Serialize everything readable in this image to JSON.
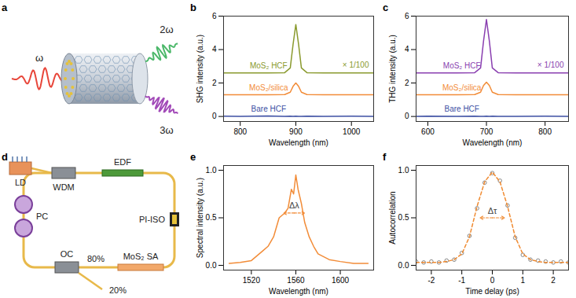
{
  "chart_data": [
    {
      "type": "line",
      "panel_label": "b",
      "x_label": "Wavelength (nm)",
      "y_label": "SHG intensity (a.u.)",
      "x": [
        770,
        800,
        850,
        880,
        890,
        895,
        900,
        905,
        910,
        920,
        950,
        1000,
        1040
      ],
      "series": [
        {
          "name": "MoS₂ HCF",
          "color": "#8a9a2e",
          "values": [
            2.6,
            2.6,
            2.6,
            2.62,
            2.9,
            4.3,
            5.5,
            4.3,
            2.9,
            2.62,
            2.6,
            2.6,
            2.6
          ]
        },
        {
          "name": "MoS₂/silica",
          "color": "#f28c38",
          "values": [
            1.3,
            1.3,
            1.3,
            1.31,
            1.45,
            1.8,
            2.0,
            1.8,
            1.45,
            1.31,
            1.3,
            1.3,
            1.3
          ]
        },
        {
          "name": "Bare HCF",
          "color": "#3d4fa3",
          "values": [
            0.02,
            0.0,
            0.03,
            0.01,
            0.02,
            0.0,
            0.02,
            0.01,
            0.0,
            0.02,
            0.01,
            0.02,
            0.0
          ]
        }
      ],
      "annotations": [
        {
          "text": "× 1/100",
          "color": "#8a9a2e"
        }
      ],
      "xlim": [
        770,
        1040
      ],
      "xticks": [
        800,
        900,
        1000
      ],
      "ylim": [
        -0.3,
        6
      ],
      "yticks": [
        0,
        2,
        4,
        6
      ]
    },
    {
      "type": "line",
      "panel_label": "c",
      "x_label": "Wavelength (nm)",
      "y_label": "THG intensity (a.u.)",
      "x": [
        580,
        600,
        650,
        680,
        690,
        695,
        700,
        705,
        710,
        720,
        750,
        800,
        840
      ],
      "series": [
        {
          "name": "MoS₂ HCF",
          "color": "#8a3fb0",
          "values": [
            2.6,
            2.6,
            2.6,
            2.62,
            2.9,
            4.5,
            5.8,
            4.5,
            2.9,
            2.62,
            2.6,
            2.6,
            2.6
          ]
        },
        {
          "name": "MoS₂/silica",
          "color": "#f28c38",
          "values": [
            1.3,
            1.3,
            1.3,
            1.31,
            1.45,
            1.85,
            2.05,
            1.85,
            1.45,
            1.31,
            1.3,
            1.3,
            1.3
          ]
        },
        {
          "name": "Bare HCF",
          "color": "#3d4fa3",
          "values": [
            0.01,
            0.02,
            0.0,
            0.02,
            0.01,
            0.0,
            0.02,
            0.01,
            0.02,
            0.0,
            0.01,
            0.02,
            0.0
          ]
        }
      ],
      "annotations": [
        {
          "text": "× 1/100",
          "color": "#8a3fb0"
        }
      ],
      "xlim": [
        580,
        840
      ],
      "xticks": [
        600,
        700,
        800
      ],
      "ylim": [
        -0.3,
        6
      ],
      "yticks": [
        0,
        2,
        4,
        6
      ]
    },
    {
      "type": "line",
      "panel_label": "e",
      "x_label": "Wavelength (nm)",
      "y_label": "Spectral intensity (a.u.)",
      "x": [
        1500,
        1510,
        1520,
        1525,
        1530,
        1535,
        1540,
        1545,
        1550,
        1553,
        1556,
        1558,
        1560,
        1562,
        1565,
        1568,
        1572,
        1576,
        1580,
        1590,
        1600,
        1612,
        1625
      ],
      "series": [
        {
          "color": "#f28c38",
          "values": [
            0.02,
            0.03,
            0.05,
            0.1,
            0.15,
            0.2,
            0.3,
            0.5,
            0.55,
            0.6,
            0.8,
            0.75,
            0.95,
            0.8,
            0.65,
            0.45,
            0.3,
            0.2,
            0.12,
            0.06,
            0.04,
            0.02,
            0.02
          ]
        }
      ],
      "annotations": [
        {
          "text": "Δλ",
          "color": "#f28c38",
          "x1": 1549,
          "x2": 1568,
          "y": 0.55
        }
      ],
      "xlim": [
        1495,
        1630
      ],
      "xticks": [
        1520,
        1560,
        1600
      ],
      "ylim": [
        -0.05,
        1.05
      ],
      "yticks": [
        {
          "value": 0,
          "label": "0.0"
        },
        {
          "value": 0.5,
          "label": "0.5"
        },
        {
          "value": 1,
          "label": "1.0"
        }
      ]
    },
    {
      "type": "line",
      "panel_label": "f",
      "x_label": "Time delay (ps)",
      "y_label": "Autocorrelation",
      "x": [
        -2.5,
        -2.25,
        -2,
        -1.75,
        -1.5,
        -1.25,
        -1,
        -0.75,
        -0.5,
        -0.25,
        0,
        0.25,
        0.5,
        0.75,
        1,
        1.25,
        1.5,
        1.75,
        2,
        2.25,
        2.5
      ],
      "series": [
        {
          "type": "scatter",
          "marker": "circle",
          "color": "#888888",
          "values": [
            0.04,
            0.03,
            0.04,
            0.03,
            0.05,
            0.06,
            0.13,
            0.31,
            0.6,
            0.87,
            0.97,
            0.89,
            0.63,
            0.29,
            0.11,
            0.06,
            0.05,
            0.04,
            0.03,
            0.04,
            0.03
          ]
        },
        {
          "type": "line",
          "line_style": "dashed",
          "color": "#f08a30",
          "values": [
            0.03,
            0.03,
            0.03,
            0.03,
            0.04,
            0.06,
            0.12,
            0.3,
            0.62,
            0.88,
            0.98,
            0.88,
            0.62,
            0.3,
            0.12,
            0.06,
            0.04,
            0.03,
            0.03,
            0.03,
            0.03
          ]
        }
      ],
      "annotations": [
        {
          "text": "Δτ",
          "color": "#f08a30",
          "x1": -0.4,
          "x2": 0.4,
          "y": 0.5
        }
      ],
      "xlim": [
        -2.5,
        2.5
      ],
      "xticks": [
        -2,
        -1,
        0,
        1,
        2
      ],
      "ylim": [
        -0.05,
        1.05
      ],
      "yticks": [
        {
          "value": 0,
          "label": "0.0"
        },
        {
          "value": 0.5,
          "label": "0.5"
        },
        {
          "value": 1,
          "label": "1.0"
        }
      ]
    }
  ],
  "diagrams": {
    "a": {
      "panel_label": "a",
      "input": "ω",
      "outputs": [
        "2ω",
        "3ω"
      ]
    },
    "d": {
      "panel_label": "d",
      "components": {
        "ld": "LD",
        "wdm": "WDM",
        "edf": "EDF",
        "pc": "PC",
        "isolator": "PI-ISO",
        "coupler": "OC",
        "sa": "MoS₂ SA",
        "output_ratio": "20%",
        "loop_ratio": "80%"
      }
    }
  }
}
